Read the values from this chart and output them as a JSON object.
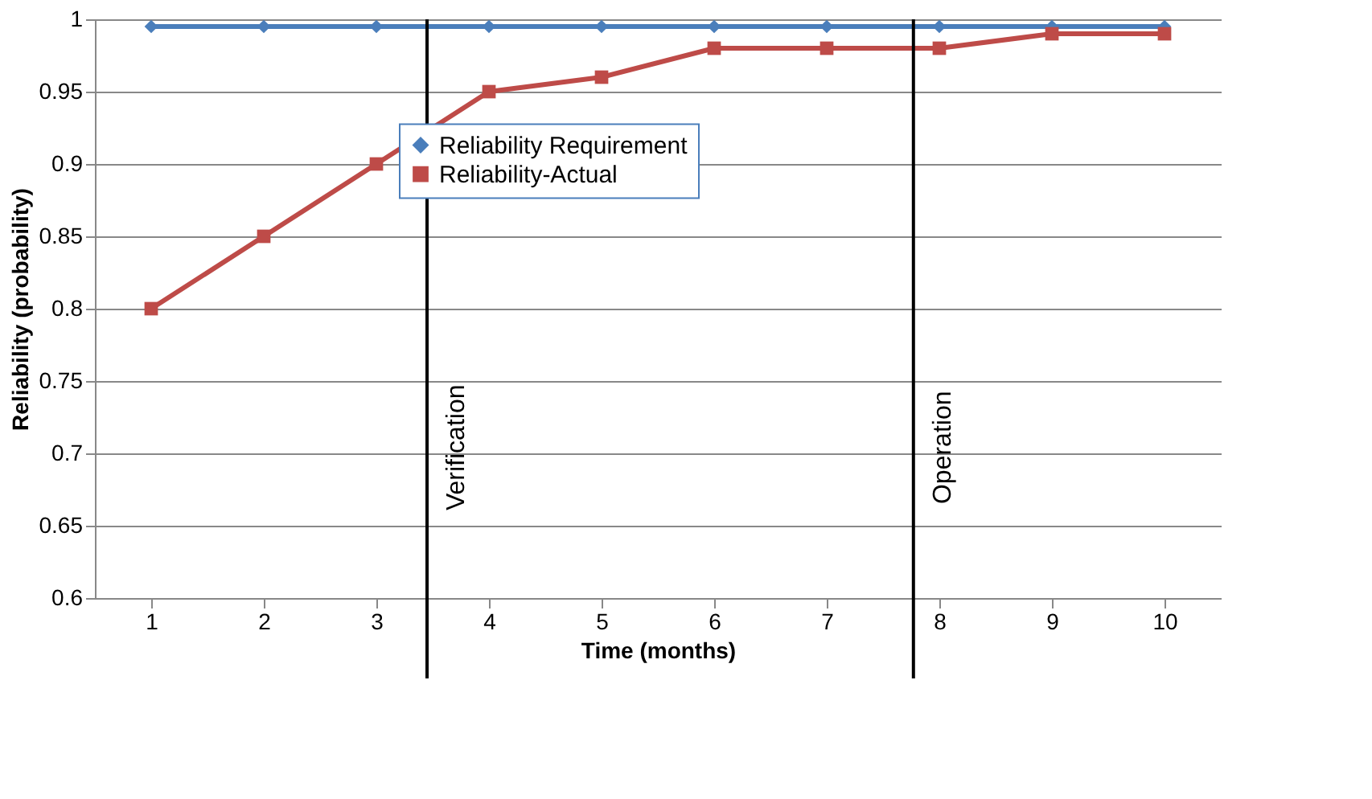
{
  "chart_data": {
    "type": "line",
    "xlabel": "Time (months)",
    "ylabel": "Reliability (probability)",
    "x": [
      1,
      2,
      3,
      4,
      5,
      6,
      7,
      8,
      9,
      10
    ],
    "xlim": [
      0.5,
      10.5
    ],
    "xticks": [
      1,
      2,
      3,
      4,
      5,
      6,
      7,
      8,
      9,
      10
    ],
    "ylim": [
      0.6,
      1
    ],
    "yticks": [
      0.6,
      0.65,
      0.7,
      0.75,
      0.8,
      0.85,
      0.9,
      0.95,
      1
    ],
    "series": [
      {
        "name": "Reliability Requirement",
        "color": "#4a7ebb",
        "marker": "diamond",
        "values": [
          0.995,
          0.995,
          0.995,
          0.995,
          0.995,
          0.995,
          0.995,
          0.995,
          0.995,
          0.995
        ]
      },
      {
        "name": "Reliability-Actual",
        "color": "#be4b48",
        "marker": "square",
        "values": [
          0.8,
          0.85,
          0.9,
          0.95,
          0.96,
          0.98,
          0.98,
          0.98,
          0.99,
          0.99
        ]
      }
    ],
    "ref_lines": [
      {
        "axis": "x",
        "value": 3.45,
        "label": "Verification",
        "color": "#000000"
      },
      {
        "axis": "x",
        "value": 7.77,
        "label": "Operation",
        "color": "#000000"
      }
    ],
    "grid": "y",
    "legend": "top",
    "line_style": "solid"
  }
}
